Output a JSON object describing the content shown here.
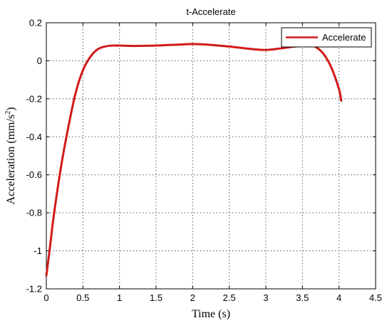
{
  "chart_data": {
    "type": "line",
    "title": "t-Accelerate",
    "xlabel": "Time (s)",
    "ylabel_main": "Acceleration (mm/s",
    "ylabel_sup": "2",
    "ylabel_close": ")",
    "xlim": [
      0,
      4.5
    ],
    "ylim": [
      -1.2,
      0.2
    ],
    "grid": true,
    "legend_position": "top-right",
    "xticks": [
      0,
      0.5,
      1,
      1.5,
      2,
      2.5,
      3,
      3.5,
      4,
      4.5
    ],
    "xtick_labels": [
      "0",
      "0.5",
      "1",
      "1.5",
      "2",
      "2.5",
      "3",
      "3.5",
      "4",
      "4.5"
    ],
    "yticks": [
      0.2,
      0,
      -0.2,
      -0.4,
      -0.6,
      -0.8,
      -1,
      -1.2
    ],
    "ytick_labels": [
      "0.2",
      "0",
      "-0.2",
      "-0.4",
      "-0.6",
      "-0.8",
      "-1",
      "-1.2"
    ],
    "series": [
      {
        "name": "Accelerate",
        "color": "#d11a1a",
        "x": [
          0,
          0.05,
          0.1,
          0.2,
          0.3,
          0.4,
          0.5,
          0.6,
          0.7,
          0.8,
          0.9,
          1.0,
          1.2,
          1.5,
          1.8,
          2.0,
          2.2,
          2.5,
          2.8,
          3.0,
          3.2,
          3.4,
          3.6,
          3.7,
          3.8,
          3.9,
          4.0,
          4.03
        ],
        "y": [
          -1.13,
          -0.98,
          -0.82,
          -0.56,
          -0.35,
          -0.17,
          -0.05,
          0.02,
          0.06,
          0.075,
          0.08,
          0.08,
          0.078,
          0.08,
          0.085,
          0.088,
          0.085,
          0.075,
          0.062,
          0.057,
          0.065,
          0.075,
          0.08,
          0.068,
          0.03,
          -0.04,
          -0.15,
          -0.21
        ]
      }
    ]
  }
}
